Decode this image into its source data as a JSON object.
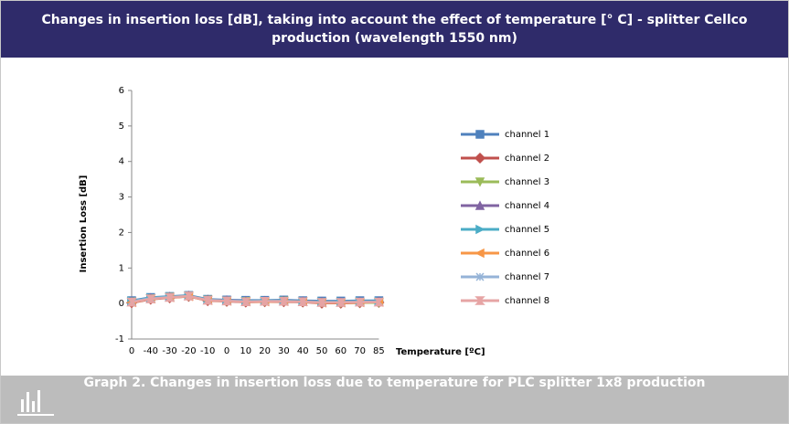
{
  "header": {
    "title": "Changes in insertion loss [dB], taking into account the effect of temperature [° C] - splitter Cellco production (wavelength 1550 nm)"
  },
  "chart_data": {
    "type": "line",
    "y_label": "Insertion Loss [dB]",
    "x_label": "Temperature [ºC]",
    "categories": [
      "0",
      "-40",
      "-30",
      "-20",
      "-10",
      "0",
      "10",
      "20",
      "30",
      "40",
      "50",
      "60",
      "70",
      "85"
    ],
    "ylim": [
      -1,
      6
    ],
    "yticks": [
      -1,
      0,
      1,
      2,
      3,
      4,
      5,
      6
    ],
    "series": [
      {
        "name": "channel 1",
        "color": "#4f81bd",
        "marker": "square",
        "values": [
          0.08,
          0.17,
          0.2,
          0.23,
          0.12,
          0.1,
          0.09,
          0.09,
          0.1,
          0.08,
          0.07,
          0.07,
          0.08,
          0.08
        ]
      },
      {
        "name": "channel 2",
        "color": "#c0504d",
        "marker": "diamond",
        "values": [
          0.02,
          0.12,
          0.16,
          0.2,
          0.08,
          0.06,
          0.04,
          0.05,
          0.05,
          0.04,
          0.01,
          0.01,
          0.02,
          0.03
        ]
      },
      {
        "name": "channel 3",
        "color": "#9bbb59",
        "marker": "tri-down",
        "values": [
          0.05,
          0.14,
          0.18,
          0.21,
          0.1,
          0.07,
          0.06,
          0.06,
          0.07,
          0.05,
          0.03,
          0.02,
          0.03,
          0.02
        ]
      },
      {
        "name": "channel 4",
        "color": "#8064a2",
        "marker": "tri-up",
        "values": [
          0.06,
          0.15,
          0.19,
          0.22,
          0.11,
          0.09,
          0.07,
          0.07,
          0.08,
          0.06,
          0.05,
          0.04,
          0.05,
          0.05
        ]
      },
      {
        "name": "channel 5",
        "color": "#4bacc6",
        "marker": "tri-right",
        "values": [
          0.07,
          0.16,
          0.19,
          0.22,
          0.11,
          0.08,
          0.07,
          0.08,
          0.08,
          0.06,
          0.05,
          0.05,
          0.06,
          0.06
        ]
      },
      {
        "name": "channel 6",
        "color": "#f79646",
        "marker": "tri-left",
        "values": [
          0.03,
          0.13,
          0.17,
          0.2,
          0.09,
          0.07,
          0.05,
          0.05,
          0.06,
          0.05,
          0.02,
          0.02,
          0.03,
          0.04
        ]
      },
      {
        "name": "channel 7",
        "color": "#95b3d7",
        "marker": "star",
        "values": [
          0.06,
          0.15,
          0.18,
          0.21,
          0.1,
          0.08,
          0.06,
          0.07,
          0.07,
          0.05,
          0.04,
          0.04,
          0.05,
          0.05
        ]
      },
      {
        "name": "channel 8",
        "color": "#e6a4a4",
        "marker": "hourglass",
        "values": [
          0.04,
          0.13,
          0.17,
          0.21,
          0.09,
          0.07,
          0.05,
          0.06,
          0.06,
          0.05,
          0.03,
          0.03,
          0.04,
          0.04
        ]
      }
    ]
  },
  "footer": {
    "caption": "Graph 2. Changes in insertion loss due to temperature for PLC splitter 1x8 production"
  }
}
